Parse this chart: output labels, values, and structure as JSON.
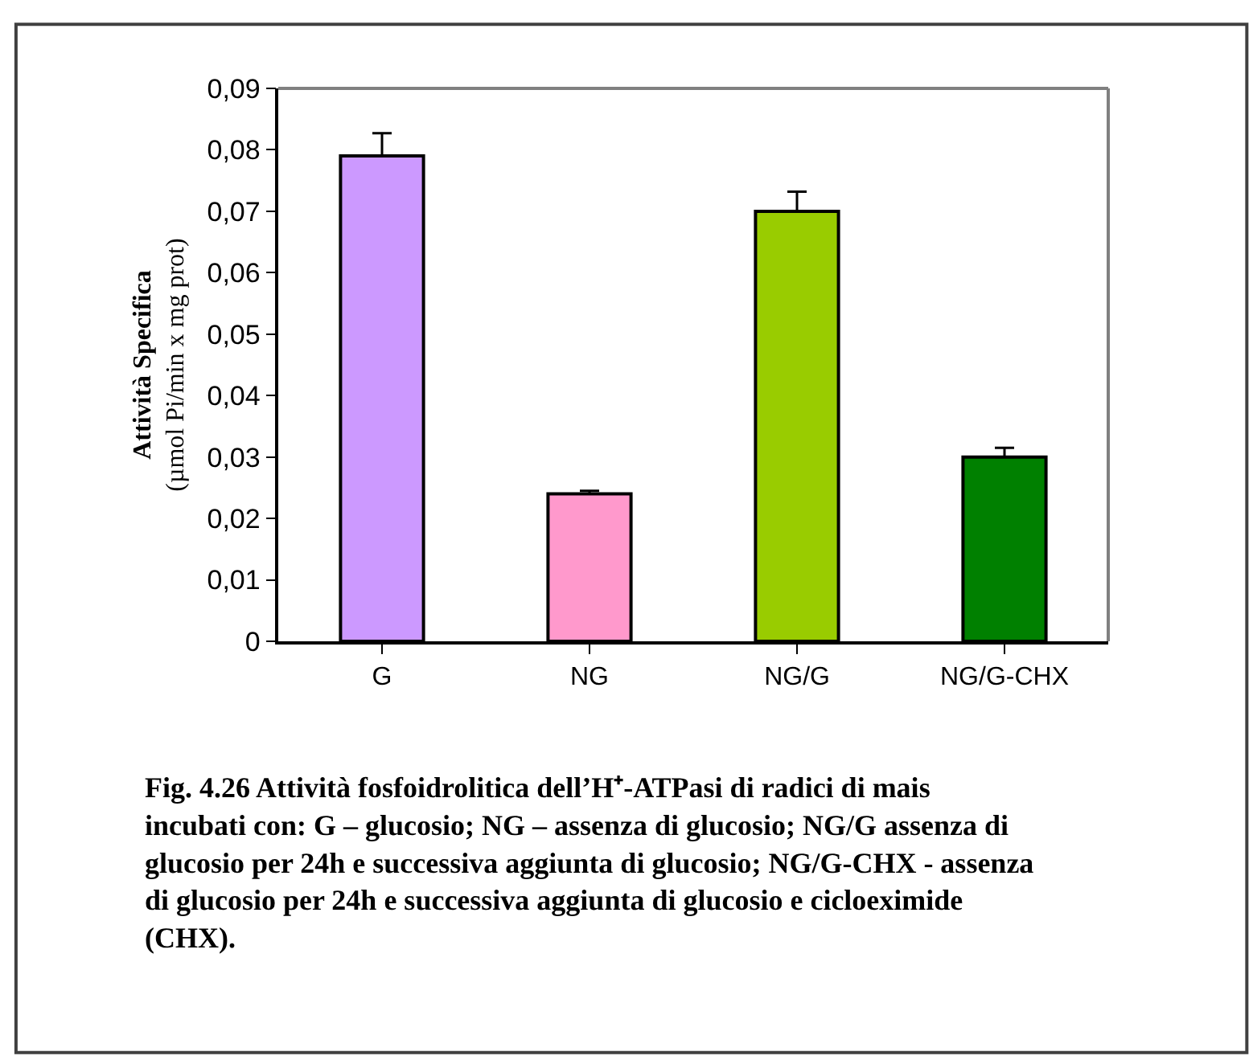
{
  "chart_data": {
    "type": "bar",
    "ylabel": "Attività Specifica\n(µmol Pi/min x mg prot)",
    "categories": [
      "G",
      "NG",
      "NG/G",
      "NG/G-CHX"
    ],
    "values": [
      0.079,
      0.024,
      0.07,
      0.03
    ],
    "colors": [
      "#cc99ff",
      "#ff99cc",
      "#99cc00",
      "#008000"
    ],
    "errors": [
      0.0037,
      0.0005,
      0.0032,
      0.0015
    ],
    "ylim": [
      0,
      0.09
    ],
    "yticks": [
      {
        "value": 0,
        "label": "0"
      },
      {
        "value": 0.01,
        "label": "0,01"
      },
      {
        "value": 0.02,
        "label": "0,02"
      },
      {
        "value": 0.03,
        "label": "0,03"
      },
      {
        "value": 0.04,
        "label": "0,04"
      },
      {
        "value": 0.05,
        "label": "0,05"
      },
      {
        "value": 0.06,
        "label": "0,06"
      },
      {
        "value": 0.07,
        "label": "0,07"
      },
      {
        "value": 0.08,
        "label": "0,08"
      },
      {
        "value": 0.09,
        "label": "0,09"
      }
    ],
    "annotations": [
      "Fig. 4.26 Attività fosfoidrolitica dell’H⁺-ATPasi di radici di mais incubati con: G – glucosio; NG – assenza di glucosio; NG/G assenza di glucosio per 24h e successiva aggiunta di glucosio; NG/G-CHX - assenza di glucosio per 24h e successiva aggiunta di glucosio e cicloeximide (CHX)."
    ]
  }
}
